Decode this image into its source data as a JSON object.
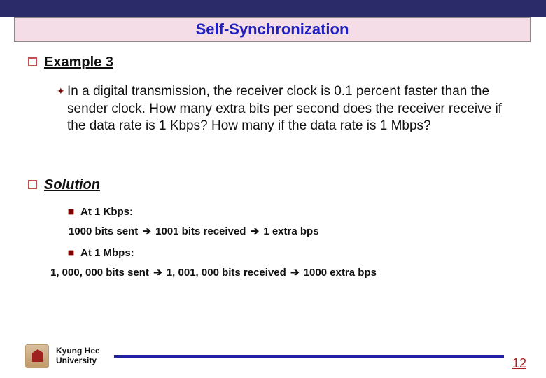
{
  "title": "Self-Synchronization",
  "example": {
    "heading": "Example 3",
    "body": "In a digital transmission, the receiver clock is 0.1 percent faster than the sender clock. How many extra bits per second does the receiver receive if the data rate is 1 Kbps? How many if the data rate is 1 Mbps?"
  },
  "solution": {
    "heading": "Solution",
    "items": [
      {
        "label": "At 1 Kbps:",
        "sent": "1000 bits sent",
        "recv": "1001 bits received",
        "extra": "1 extra bps"
      },
      {
        "label": "At 1 Mbps:",
        "sent": "1, 000, 000 bits sent",
        "recv": "1, 001, 000 bits received",
        "extra": "1000 extra bps"
      }
    ]
  },
  "footer": {
    "univ1": "Kyung Hee",
    "univ2": "University",
    "page": "12"
  },
  "colors": {
    "topbar": "#2b2b69",
    "titlebg": "#f4dde6",
    "titlefg": "#2020c0",
    "bullet_border": "#c05050",
    "diamond": "#7a0000",
    "footer_line": "#2020a0",
    "page_color": "#b02020"
  }
}
